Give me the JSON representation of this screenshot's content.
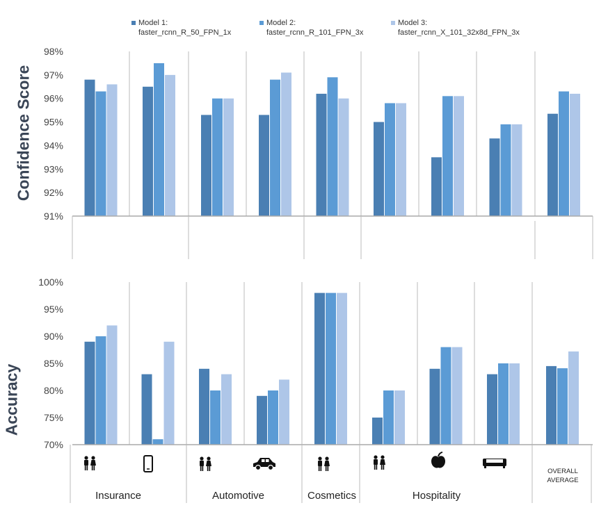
{
  "colors": {
    "m1": "#4a7fb3",
    "m2": "#5b9bd5",
    "m3": "#aec6e8",
    "axis": "#aaaaaa",
    "grid": "#bbbbbb"
  },
  "legend": [
    {
      "line1": "Model 1:",
      "line2": "faster_rcnn_R_50_FPN_1x"
    },
    {
      "line1": "Model 2:",
      "line2": "faster_rcnn_R_101_FPN_3x"
    },
    {
      "line1": "Model 3:",
      "line2": "faster_rcnn_X_101_32x8d_FPN_3x"
    }
  ],
  "categories": {
    "insurance": "Insurance",
    "automotive": "Automotive",
    "cosmetics": "Cosmetics",
    "hospitality": "Hospitality",
    "overall_line1": "OVERALL",
    "overall_line2": "AVERAGE"
  },
  "icons": [
    "people-icon",
    "phone-icon",
    "people-icon",
    "car-icon",
    "people-icon",
    "people-icon",
    "apple-icon",
    "sofa-icon"
  ],
  "chart_data": [
    {
      "type": "bar",
      "title": "",
      "ylabel": "Confidence Score",
      "xlabel": "",
      "ylim": [
        91,
        98
      ],
      "yticks": [
        "91%",
        "92%",
        "93%",
        "94%",
        "95%",
        "96%",
        "97%",
        "98%"
      ],
      "groups": [
        "Insurance (people)",
        "Insurance (phone)",
        "Automotive (people)",
        "Automotive (car)",
        "Cosmetics (people)",
        "Hospitality (people)",
        "Hospitality (apple)",
        "Hospitality (sofa)",
        "Overall Average"
      ],
      "series": [
        {
          "name": "Model 1: faster_rcnn_R_50_FPN_1x",
          "values": [
            96.8,
            96.5,
            95.3,
            95.3,
            96.2,
            95.0,
            93.5,
            94.3,
            95.35
          ]
        },
        {
          "name": "Model 2: faster_rcnn_R_101_FPN_3x",
          "values": [
            96.3,
            97.5,
            96.0,
            96.8,
            96.9,
            95.8,
            96.1,
            94.9,
            96.3
          ]
        },
        {
          "name": "Model 3: faster_rcnn_X_101_32x8d_FPN_3x",
          "values": [
            96.6,
            97.0,
            96.0,
            97.1,
            96.0,
            95.8,
            96.1,
            94.9,
            96.2
          ]
        }
      ]
    },
    {
      "type": "bar",
      "title": "",
      "ylabel": "Accuracy",
      "xlabel": "",
      "ylim": [
        70,
        100
      ],
      "yticks": [
        "70%",
        "75%",
        "80%",
        "85%",
        "90%",
        "95%",
        "100%"
      ],
      "groups": [
        "Insurance (people)",
        "Insurance (phone)",
        "Automotive (people)",
        "Automotive (car)",
        "Cosmetics (people)",
        "Hospitality (people)",
        "Hospitality (apple)",
        "Hospitality (sofa)",
        "Overall Average"
      ],
      "series": [
        {
          "name": "Model 1: faster_rcnn_R_50_FPN_1x",
          "values": [
            89,
            83,
            84,
            79,
            98,
            75,
            84,
            83,
            84.5
          ]
        },
        {
          "name": "Model 2: faster_rcnn_R_101_FPN_3x",
          "values": [
            90,
            71,
            80,
            80,
            98,
            80,
            88,
            85,
            84.1
          ]
        },
        {
          "name": "Model 3: faster_rcnn_X_101_32x8d_FPN_3x",
          "values": [
            92,
            89,
            83,
            82,
            98,
            80,
            88,
            85,
            87.2
          ]
        }
      ]
    }
  ]
}
